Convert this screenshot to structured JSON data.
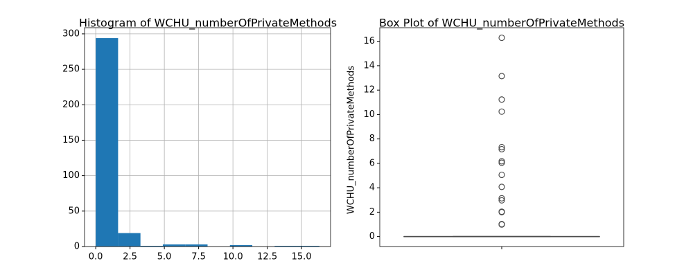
{
  "chart_data": [
    {
      "type": "histogram",
      "title": "Histogram of WCHU_numberOfPrivateMethods",
      "bins": [
        0,
        1.63,
        3.26,
        4.89,
        6.52,
        8.15,
        9.78,
        11.41,
        13.04,
        14.67,
        16.3
      ],
      "counts": [
        294,
        19,
        1,
        3,
        3,
        0,
        2,
        0,
        1,
        1
      ],
      "color": "#1f77b4",
      "grid": true,
      "xlim": [
        -0.815,
        17.115
      ],
      "xticks": [
        {
          "value": 0,
          "label": "0.0"
        },
        {
          "value": 2.5,
          "label": "2.5"
        },
        {
          "value": 5,
          "label": "5.0"
        },
        {
          "value": 7.5,
          "label": "7.5"
        },
        {
          "value": 10,
          "label": "10.0"
        },
        {
          "value": 12.5,
          "label": "12.5"
        },
        {
          "value": 15,
          "label": "15.0"
        }
      ],
      "ylim": [
        0,
        308.7
      ],
      "yticks": [
        0,
        50,
        100,
        150,
        200,
        250,
        300
      ]
    },
    {
      "type": "box",
      "title": "Box Plot of WCHU_numberOfPrivateMethods",
      "y_label": "WCHU_numberOfPrivateMethods",
      "whisker_low": 0,
      "q1": 0,
      "median": 0,
      "q3": 0,
      "whisker_high": 0,
      "outliers": [
        0.99,
        1.02,
        2.0,
        2.04,
        2.97,
        3.14,
        4.07,
        5.06,
        6.05,
        6.17,
        7.16,
        7.33,
        10.24,
        11.23,
        13.15,
        16.29
      ],
      "color": "#4c4c4c",
      "grid": false,
      "ylim": [
        -0.815,
        17.115
      ],
      "yticks": [
        0,
        2,
        4,
        6,
        8,
        10,
        12,
        14,
        16
      ]
    }
  ]
}
